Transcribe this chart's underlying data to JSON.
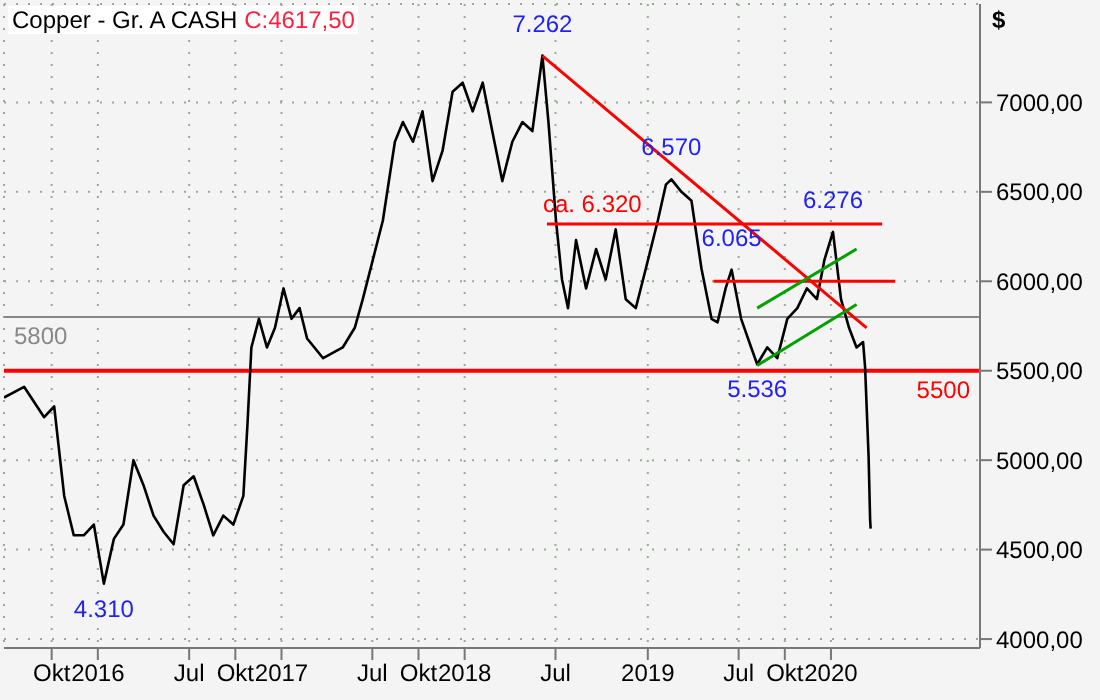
{
  "chart_data": {
    "type": "line",
    "title": "Copper - Gr. A CASH",
    "subtitle": "C:4617,50",
    "ylabel": "$",
    "x": [
      "2015-06-28",
      "2015-08-07",
      "2015-09-16",
      "2015-10-06",
      "2015-10-26",
      "2015-11-14",
      "2015-12-04",
      "2015-12-24",
      "2016-01-13",
      "2016-02-02",
      "2016-02-21",
      "2016-03-12",
      "2016-04-01",
      "2016-04-21",
      "2016-05-11",
      "2016-05-31",
      "2016-06-20",
      "2016-07-10",
      "2016-07-30",
      "2016-08-18",
      "2016-09-07",
      "2016-09-27",
      "2016-10-17",
      "2016-10-25",
      "2016-11-02",
      "2016-11-17",
      "2016-12-03",
      "2016-12-19",
      "2017-01-05",
      "2017-01-21",
      "2017-02-06",
      "2017-02-21",
      "2017-03-25",
      "2017-05-03",
      "2017-05-27",
      "2017-06-12",
      "2017-07-02",
      "2017-07-22",
      "2017-08-15",
      "2017-08-31",
      "2017-09-20",
      "2017-10-09",
      "2017-10-29",
      "2017-11-18",
      "2017-12-08",
      "2017-12-28",
      "2018-01-17",
      "2018-02-06",
      "2018-02-25",
      "2018-03-17",
      "2018-04-06",
      "2018-04-26",
      "2018-05-16",
      "2018-06-05",
      "2018-06-17",
      "2018-07-02",
      "2018-07-14",
      "2018-07-26",
      "2018-08-11",
      "2018-08-31",
      "2018-09-20",
      "2018-10-09",
      "2018-10-29",
      "2018-11-18",
      "2018-12-08",
      "2018-12-28",
      "2019-01-21",
      "2019-02-06",
      "2019-02-17",
      "2019-03-09",
      "2019-03-29",
      "2019-04-18",
      "2019-05-08",
      "2019-05-20",
      "2019-06-05",
      "2019-06-17",
      "2019-07-06",
      "2019-07-26",
      "2019-08-07",
      "2019-08-27",
      "2019-09-16",
      "2019-10-06",
      "2019-10-26",
      "2019-11-14",
      "2019-12-04",
      "2019-12-19",
      "2020-01-05",
      "2020-01-21",
      "2020-02-06",
      "2020-02-21",
      "2020-03-05",
      "2020-03-09",
      "2020-03-16",
      "2020-03-19",
      "2020-03-20"
    ],
    "series": [
      {
        "color": "#000000",
        "values": [
          5350,
          5410,
          5240,
          5300,
          4800,
          4580,
          4580,
          4640,
          4310,
          4560,
          4640,
          5000,
          4860,
          4690,
          4600,
          4530,
          4860,
          4910,
          4750,
          4580,
          4690,
          4640,
          4800,
          5190,
          5630,
          5790,
          5630,
          5740,
          5960,
          5790,
          5850,
          5680,
          5570,
          5630,
          5740,
          5900,
          6120,
          6340,
          6780,
          6890,
          6780,
          6950,
          6560,
          6730,
          7060,
          7110,
          6950,
          7110,
          6840,
          6560,
          6780,
          6890,
          6840,
          7262,
          6890,
          6340,
          6010,
          5850,
          6230,
          5960,
          6180,
          6010,
          6290,
          5900,
          5850,
          6070,
          6340,
          6540,
          6570,
          6500,
          6450,
          6070,
          5790,
          5770,
          5960,
          6065,
          5790,
          5630,
          5536,
          5630,
          5570,
          5790,
          5850,
          5960,
          5900,
          6120,
          6276,
          5900,
          5740,
          5630,
          5660,
          5520,
          5020,
          4670,
          4617
        ]
      },
      {
        "name": "ca. 6.320",
        "color": "#ff0000",
        "x": [
          "2018-06-14",
          "2020-04-12"
        ],
        "values": [
          6320,
          6320
        ]
      },
      {
        "color": "#ff0000",
        "x": [
          "2019-05-12",
          "2020-05-08"
        ],
        "values": [
          6000,
          6000
        ]
      },
      {
        "color": "#ff0000",
        "x": [
          "2018-06-05",
          "2020-03-12"
        ],
        "values": [
          7260,
          5740
        ]
      },
      {
        "color": "#00a000",
        "x": [
          "2019-08-07",
          "2020-02-21"
        ],
        "values": [
          5530,
          5870
        ]
      },
      {
        "color": "#00a000",
        "x": [
          "2019-08-07",
          "2020-02-21"
        ],
        "values": [
          5850,
          6180
        ]
      }
    ],
    "annotations": [
      {
        "text": "7.262",
        "x": "2018-06-05",
        "y": 7262
      },
      {
        "text": "6.570",
        "x": "2019-02-17",
        "y": 6570
      },
      {
        "text": "6.065",
        "x": "2019-06-17",
        "y": 6065
      },
      {
        "text": "6.276",
        "x": "2020-01-05",
        "y": 6276
      },
      {
        "text": "5.536",
        "x": "2019-08-07",
        "y": 5536
      },
      {
        "text": "4.310",
        "x": "2016-01-13",
        "y": 4310
      }
    ],
    "ref_lines": [
      {
        "axis": "y",
        "value": 5800,
        "label": "5800",
        "color": "#888888"
      },
      {
        "axis": "y",
        "value": 5500,
        "label": "5500",
        "color": "#ff0000"
      }
    ],
    "xlim": [
      "2015-06-28",
      "2020-10-24"
    ],
    "xticks": [
      {
        "value": "2015-10-01",
        "label": "Okt"
      },
      {
        "value": "2016-01-01",
        "label": "2016"
      },
      {
        "value": "2016-07-01",
        "label": "Jul"
      },
      {
        "value": "2016-10-01",
        "label": "Okt"
      },
      {
        "value": "2017-01-01",
        "label": "2017"
      },
      {
        "value": "2017-07-01",
        "label": "Jul"
      },
      {
        "value": "2017-10-01",
        "label": "Okt"
      },
      {
        "value": "2018-01-01",
        "label": "2018"
      },
      {
        "value": "2018-07-01",
        "label": "Jul"
      },
      {
        "value": "2019-01-01",
        "label": "2019"
      },
      {
        "value": "2019-07-01",
        "label": "Jul"
      },
      {
        "value": "2019-10-01",
        "label": "Okt"
      },
      {
        "value": "2020-01-01",
        "label": "2020"
      }
    ],
    "ylim": [
      3950,
      7550
    ],
    "yticks": [
      {
        "value": 4000,
        "label": "4000,00"
      },
      {
        "value": 4500,
        "label": "4500,00"
      },
      {
        "value": 5000,
        "label": "5000,00"
      },
      {
        "value": 5500,
        "label": "5500,00"
      },
      {
        "value": 6000,
        "label": "6000,00"
      },
      {
        "value": 6500,
        "label": "6500,00"
      },
      {
        "value": 7000,
        "label": "7000,00"
      }
    ],
    "grid": true,
    "legend": false,
    "marker": "none",
    "line_style": "solid"
  }
}
